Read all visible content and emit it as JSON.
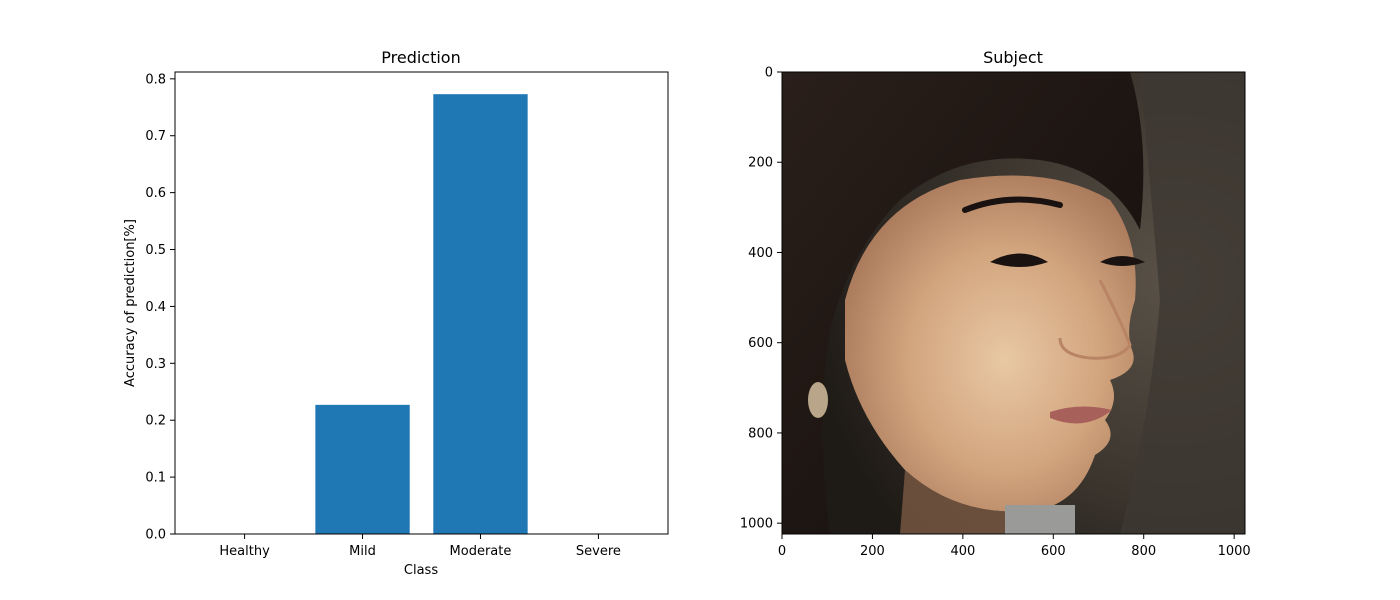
{
  "chart_data": [
    {
      "type": "bar",
      "title": "Prediction",
      "xlabel": "Class",
      "ylabel": "Accuracy of prediction[%]",
      "categories": [
        "Healthy",
        "Mild",
        "Moderate",
        "Severe"
      ],
      "values": [
        0.0,
        0.227,
        0.773,
        0.0
      ],
      "ylim": [
        0,
        0.812
      ],
      "yticks": [
        0.0,
        0.1,
        0.2,
        0.3,
        0.4,
        0.5,
        0.6,
        0.7,
        0.8
      ],
      "bar_color": "#1f77b4",
      "grid": false
    },
    {
      "type": "image",
      "title": "Subject",
      "xlim": [
        0,
        1024
      ],
      "ylim": [
        1024,
        0
      ],
      "xticks": [
        0,
        200,
        400,
        600,
        800,
        1000
      ],
      "yticks": [
        0,
        200,
        400,
        600,
        800,
        1000
      ],
      "grid": false
    }
  ]
}
